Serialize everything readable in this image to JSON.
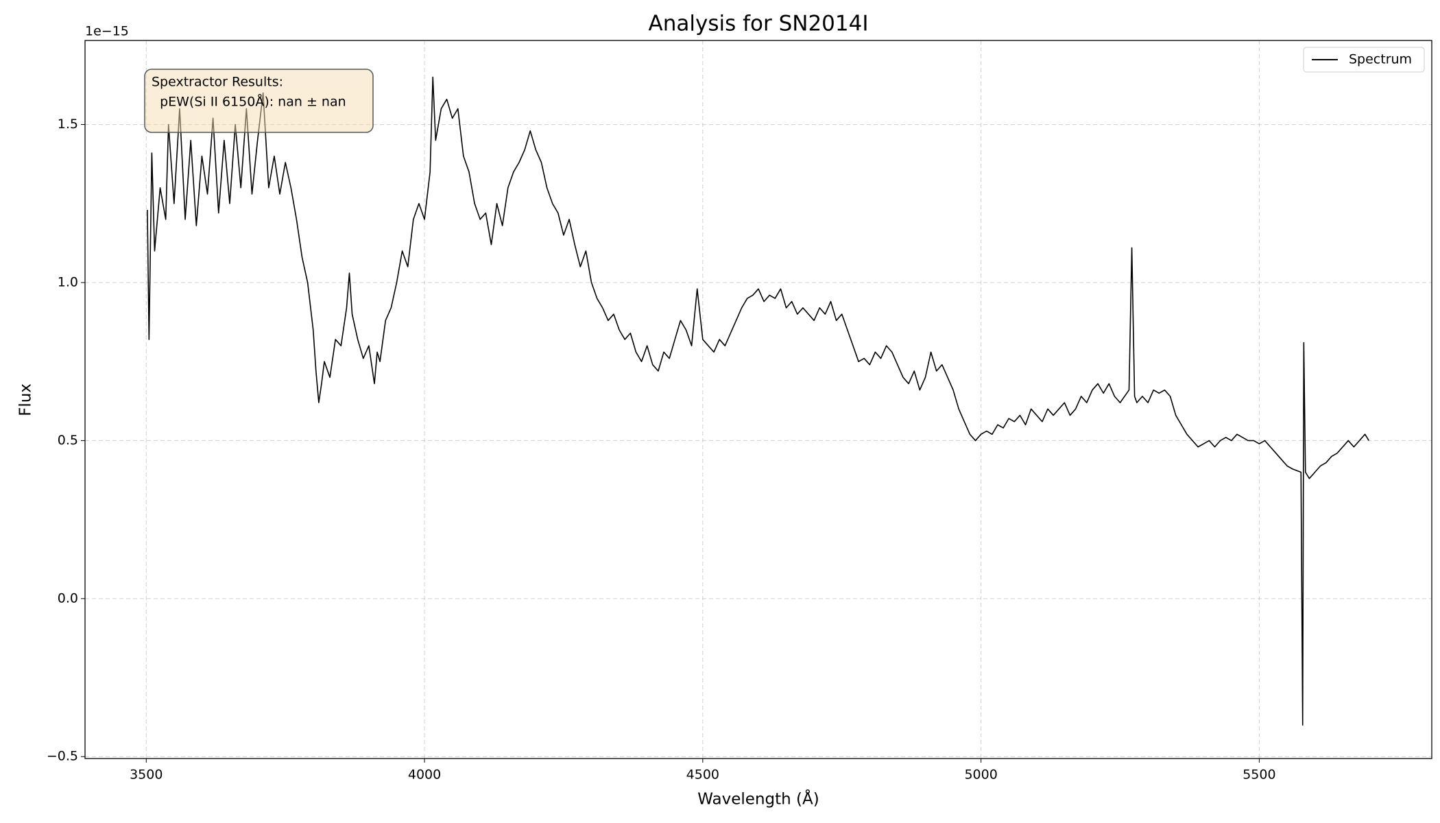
{
  "chart_data": {
    "type": "line",
    "title": "Analysis for SN2014I",
    "x_label": "Wavelength (Å)",
    "y_label": "Flux",
    "y_offset_label": "1e−15",
    "annotation_lines": [
      "Spextractor Results:",
      "  pEW(Si II 6150Å): nan ± nan"
    ],
    "legend": "upper right",
    "grid": true,
    "xlim": [
      3390,
      5810
    ],
    "ylim": [
      -0.506,
      1.766
    ],
    "xticks": [
      3500,
      4000,
      4500,
      5000,
      5500
    ],
    "yticks": [
      {
        "value": -0.5,
        "label": "−0.5"
      },
      {
        "value": 0,
        "label": "0.0"
      },
      0.5,
      {
        "value": 1,
        "label": "1.0"
      },
      1.5
    ],
    "x": [
      3502,
      3505,
      3510,
      3515,
      3525,
      3535,
      3540,
      3550,
      3560,
      3570,
      3580,
      3590,
      3600,
      3610,
      3620,
      3630,
      3640,
      3650,
      3660,
      3670,
      3680,
      3690,
      3700,
      3710,
      3720,
      3730,
      3740,
      3750,
      3760,
      3770,
      3780,
      3790,
      3800,
      3805,
      3810,
      3815,
      3820,
      3830,
      3840,
      3850,
      3860,
      3865,
      3870,
      3880,
      3890,
      3900,
      3910,
      3915,
      3920,
      3930,
      3940,
      3950,
      3960,
      3970,
      3980,
      3990,
      4000,
      4010,
      4015,
      4020,
      4030,
      4040,
      4050,
      4060,
      4070,
      4080,
      4090,
      4100,
      4110,
      4120,
      4130,
      4140,
      4150,
      4160,
      4170,
      4180,
      4190,
      4200,
      4210,
      4220,
      4230,
      4240,
      4250,
      4260,
      4270,
      4280,
      4290,
      4300,
      4310,
      4320,
      4330,
      4340,
      4350,
      4360,
      4370,
      4380,
      4390,
      4400,
      4410,
      4420,
      4430,
      4440,
      4450,
      4460,
      4470,
      4480,
      4490,
      4500,
      4510,
      4520,
      4530,
      4540,
      4550,
      4560,
      4570,
      4580,
      4590,
      4600,
      4610,
      4620,
      4630,
      4640,
      4650,
      4660,
      4670,
      4680,
      4690,
      4700,
      4710,
      4720,
      4730,
      4740,
      4750,
      4760,
      4770,
      4780,
      4790,
      4800,
      4810,
      4820,
      4830,
      4840,
      4850,
      4860,
      4870,
      4880,
      4890,
      4900,
      4910,
      4920,
      4930,
      4940,
      4950,
      4960,
      4970,
      4980,
      4990,
      5000,
      5010,
      5020,
      5030,
      5040,
      5050,
      5060,
      5070,
      5080,
      5090,
      5100,
      5110,
      5120,
      5130,
      5140,
      5150,
      5160,
      5170,
      5180,
      5190,
      5200,
      5210,
      5220,
      5230,
      5240,
      5250,
      5266,
      5271,
      5276,
      5280,
      5290,
      5300,
      5310,
      5320,
      5330,
      5340,
      5350,
      5360,
      5370,
      5380,
      5390,
      5400,
      5410,
      5420,
      5430,
      5440,
      5450,
      5460,
      5470,
      5480,
      5490,
      5500,
      5510,
      5520,
      5530,
      5540,
      5550,
      5560,
      5575,
      5578,
      5580,
      5583,
      5590,
      5600,
      5610,
      5620,
      5630,
      5640,
      5650,
      5660,
      5670,
      5680,
      5690,
      5697
    ],
    "series": [
      {
        "name": "Spectrum",
        "color": "#000000",
        "values": [
          1.23,
          0.82,
          1.41,
          1.1,
          1.3,
          1.2,
          1.5,
          1.25,
          1.55,
          1.2,
          1.45,
          1.18,
          1.4,
          1.28,
          1.52,
          1.22,
          1.45,
          1.25,
          1.5,
          1.3,
          1.55,
          1.28,
          1.45,
          1.6,
          1.3,
          1.4,
          1.28,
          1.38,
          1.3,
          1.2,
          1.08,
          1.0,
          0.85,
          0.72,
          0.62,
          0.68,
          0.75,
          0.7,
          0.82,
          0.8,
          0.92,
          1.03,
          0.9,
          0.82,
          0.76,
          0.8,
          0.68,
          0.78,
          0.75,
          0.88,
          0.92,
          1.0,
          1.1,
          1.05,
          1.2,
          1.25,
          1.2,
          1.35,
          1.65,
          1.45,
          1.55,
          1.58,
          1.52,
          1.55,
          1.4,
          1.35,
          1.25,
          1.2,
          1.22,
          1.12,
          1.25,
          1.18,
          1.3,
          1.35,
          1.38,
          1.42,
          1.48,
          1.42,
          1.38,
          1.3,
          1.25,
          1.22,
          1.15,
          1.2,
          1.12,
          1.05,
          1.1,
          1.0,
          0.95,
          0.92,
          0.88,
          0.9,
          0.85,
          0.82,
          0.84,
          0.78,
          0.75,
          0.8,
          0.74,
          0.72,
          0.78,
          0.76,
          0.82,
          0.88,
          0.85,
          0.8,
          0.98,
          0.82,
          0.8,
          0.78,
          0.82,
          0.8,
          0.84,
          0.88,
          0.92,
          0.95,
          0.96,
          0.98,
          0.94,
          0.96,
          0.95,
          0.98,
          0.92,
          0.94,
          0.9,
          0.92,
          0.9,
          0.88,
          0.92,
          0.9,
          0.94,
          0.88,
          0.9,
          0.85,
          0.8,
          0.75,
          0.76,
          0.74,
          0.78,
          0.76,
          0.8,
          0.78,
          0.74,
          0.7,
          0.68,
          0.72,
          0.66,
          0.7,
          0.78,
          0.72,
          0.74,
          0.7,
          0.66,
          0.6,
          0.56,
          0.52,
          0.5,
          0.52,
          0.53,
          0.52,
          0.55,
          0.54,
          0.57,
          0.56,
          0.58,
          0.55,
          0.6,
          0.58,
          0.56,
          0.6,
          0.58,
          0.6,
          0.62,
          0.58,
          0.6,
          0.64,
          0.62,
          0.66,
          0.68,
          0.65,
          0.68,
          0.64,
          0.62,
          0.66,
          1.11,
          0.64,
          0.62,
          0.64,
          0.62,
          0.66,
          0.65,
          0.66,
          0.64,
          0.58,
          0.55,
          0.52,
          0.5,
          0.48,
          0.49,
          0.5,
          0.48,
          0.5,
          0.51,
          0.5,
          0.52,
          0.51,
          0.5,
          0.5,
          0.49,
          0.5,
          0.48,
          0.46,
          0.44,
          0.42,
          0.41,
          0.4,
          -0.4,
          0.81,
          0.4,
          0.38,
          0.4,
          0.42,
          0.43,
          0.45,
          0.46,
          0.48,
          0.5,
          0.48,
          0.5,
          0.52,
          0.5
        ]
      }
    ]
  }
}
